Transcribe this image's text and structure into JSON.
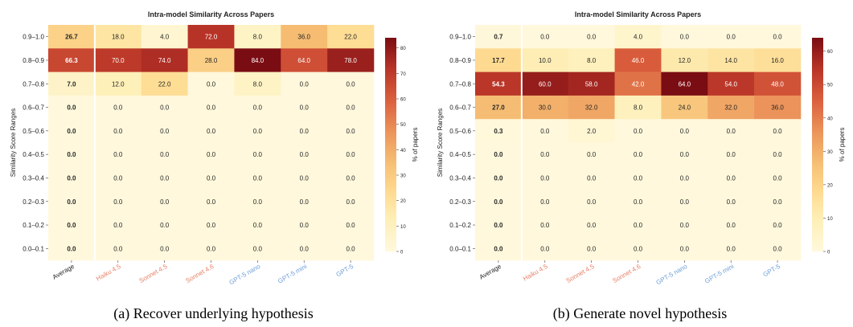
{
  "colors": {
    "scale": [
      "#fff8dc",
      "#fef0b9",
      "#fed98e",
      "#f5bc72",
      "#ea9058",
      "#d95d3c",
      "#b83327",
      "#7a0d13"
    ],
    "claude_label": "#e8826a",
    "gpt_label": "#6fa0d8",
    "average_label": "#222222",
    "separator": "#ffffff"
  },
  "chart_data": [
    {
      "type": "heatmap",
      "title": "Intra-model Similarity Across Papers",
      "caption": "(a) Recover underlying hypothesis",
      "ylabel": "Similarity Score Ranges",
      "colorbar_label": "% of papers",
      "colorbar_range": [
        0,
        84
      ],
      "colorbar_ticks": [
        0,
        10,
        20,
        30,
        40,
        50,
        60,
        70,
        80
      ],
      "rows": [
        "0.9–1.0",
        "0.8–0.9",
        "0.7–0.8",
        "0.6–0.7",
        "0.5–0.6",
        "0.4–0.5",
        "0.3–0.4",
        "0.2–0.3",
        "0.1–0.2",
        "0.0–0.1"
      ],
      "columns": [
        {
          "label": "Average",
          "group": "average"
        },
        {
          "label": "Haiku 4.5",
          "group": "claude"
        },
        {
          "label": "Sonnet 4.5",
          "group": "claude"
        },
        {
          "label": "Sonnet 4.6",
          "group": "claude"
        },
        {
          "label": "GPT-5 nano",
          "group": "gpt"
        },
        {
          "label": "GPT-5 mini",
          "group": "gpt"
        },
        {
          "label": "GPT-5",
          "group": "gpt"
        }
      ],
      "values": [
        [
          26.7,
          18.0,
          4.0,
          72.0,
          8.0,
          36.0,
          22.0
        ],
        [
          66.3,
          70.0,
          74.0,
          28.0,
          84.0,
          64.0,
          78.0
        ],
        [
          7.0,
          12.0,
          22.0,
          0.0,
          8.0,
          0.0,
          0.0
        ],
        [
          0.0,
          0.0,
          0.0,
          0.0,
          0.0,
          0.0,
          0.0
        ],
        [
          0.0,
          0.0,
          0.0,
          0.0,
          0.0,
          0.0,
          0.0
        ],
        [
          0.0,
          0.0,
          0.0,
          0.0,
          0.0,
          0.0,
          0.0
        ],
        [
          0.0,
          0.0,
          0.0,
          0.0,
          0.0,
          0.0,
          0.0
        ],
        [
          0.0,
          0.0,
          0.0,
          0.0,
          0.0,
          0.0,
          0.0
        ],
        [
          0.0,
          0.0,
          0.0,
          0.0,
          0.0,
          0.0,
          0.0
        ],
        [
          0.0,
          0.0,
          0.0,
          0.0,
          0.0,
          0.0,
          0.0
        ]
      ]
    },
    {
      "type": "heatmap",
      "title": "Intra-model Similarity Across Papers",
      "caption": "(b) Generate novel hypothesis",
      "ylabel": "Similarity Score Ranges",
      "colorbar_label": "% of papers",
      "colorbar_range": [
        0,
        64
      ],
      "colorbar_ticks": [
        0,
        10,
        20,
        30,
        40,
        50,
        60
      ],
      "rows": [
        "0.9–1.0",
        "0.8–0.9",
        "0.7–0.8",
        "0.6–0.7",
        "0.5–0.6",
        "0.4–0.5",
        "0.3–0.4",
        "0.2–0.3",
        "0.1–0.2",
        "0.0–0.1"
      ],
      "columns": [
        {
          "label": "Average",
          "group": "average"
        },
        {
          "label": "Haiku 4.5",
          "group": "claude"
        },
        {
          "label": "Sonnet 4.5",
          "group": "claude"
        },
        {
          "label": "Sonnet 4.6",
          "group": "claude"
        },
        {
          "label": "GPT-5 nano",
          "group": "gpt"
        },
        {
          "label": "GPT-5 mini",
          "group": "gpt"
        },
        {
          "label": "GPT-5",
          "group": "gpt"
        }
      ],
      "values": [
        [
          0.7,
          0.0,
          0.0,
          4.0,
          0.0,
          0.0,
          0.0
        ],
        [
          17.7,
          10.0,
          8.0,
          46.0,
          12.0,
          14.0,
          16.0
        ],
        [
          54.3,
          60.0,
          58.0,
          42.0,
          64.0,
          54.0,
          48.0
        ],
        [
          27.0,
          30.0,
          32.0,
          8.0,
          24.0,
          32.0,
          36.0
        ],
        [
          0.3,
          0.0,
          2.0,
          0.0,
          0.0,
          0.0,
          0.0
        ],
        [
          0.0,
          0.0,
          0.0,
          0.0,
          0.0,
          0.0,
          0.0
        ],
        [
          0.0,
          0.0,
          0.0,
          0.0,
          0.0,
          0.0,
          0.0
        ],
        [
          0.0,
          0.0,
          0.0,
          0.0,
          0.0,
          0.0,
          0.0
        ],
        [
          0.0,
          0.0,
          0.0,
          0.0,
          0.0,
          0.0,
          0.0
        ],
        [
          0.0,
          0.0,
          0.0,
          0.0,
          0.0,
          0.0,
          0.0
        ]
      ]
    }
  ]
}
